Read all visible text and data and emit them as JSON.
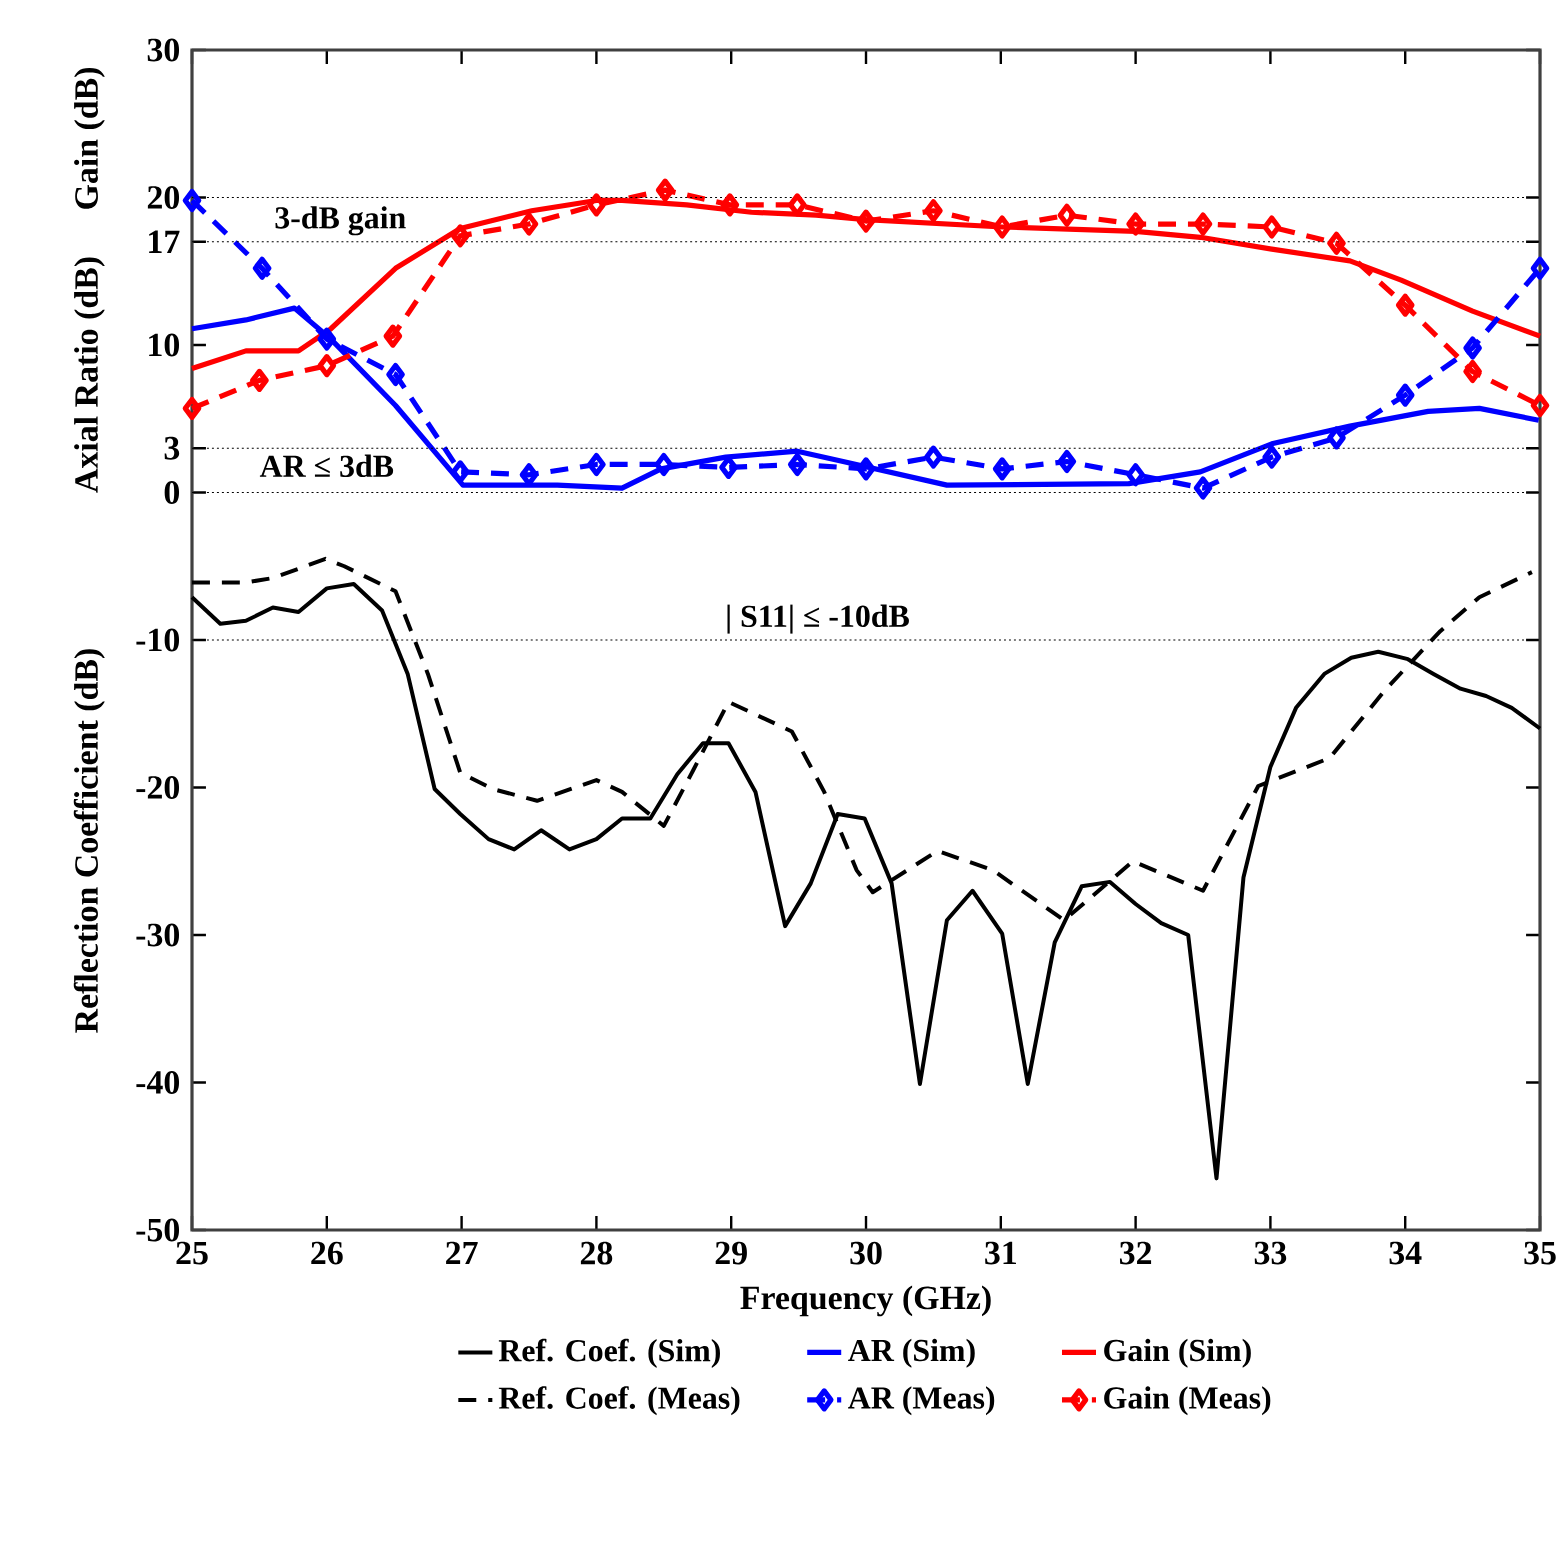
{
  "chart_data": {
    "type": "line",
    "xlabel": "Frequency (GHz)",
    "ylabel": "Reflection Coefficient (dB)",
    "xlim": [
      25,
      35
    ],
    "xticks": [
      25,
      26,
      27,
      28,
      29,
      30,
      31,
      32,
      33,
      34,
      35
    ],
    "ylim": [
      -50,
      30
    ],
    "yticks": [
      -50,
      -40,
      -30,
      -20,
      -10,
      0,
      3,
      10,
      17,
      20,
      30
    ],
    "grid": false,
    "legend": "bottom",
    "series": [
      {
        "name": "Ref. Coef. (Sim)",
        "color": "#000000",
        "line_style": "solid",
        "x": [
          25,
          25.21,
          25.4,
          25.6,
          25.79,
          26,
          26.2,
          26.41,
          26.6,
          26.8,
          26.99,
          27.2,
          27.39,
          27.59,
          27.8,
          28,
          28.19,
          28.4,
          28.6,
          28.79,
          28.98,
          29.18,
          29.4,
          29.59,
          29.79,
          29.99,
          30.19,
          30.4,
          30.6,
          30.79,
          31.01,
          31.2,
          31.4,
          31.6,
          31.81,
          32.0,
          32.19,
          32.39,
          32.6,
          32.8,
          33.0,
          33.19,
          33.4,
          33.6,
          33.8,
          34.02,
          34.21,
          34.41,
          34.6,
          34.79,
          35
        ],
        "values": [
          -7.1,
          -8.9,
          -8.7,
          -7.8,
          -8.1,
          -6.5,
          -6.2,
          -8.0,
          -12.3,
          -20.1,
          -21.8,
          -23.5,
          -24.2,
          -22.9,
          -24.2,
          -23.5,
          -22.1,
          -22.1,
          -19.1,
          -17.0,
          -17.0,
          -20.3,
          -29.4,
          -26.5,
          -21.8,
          -22.1,
          -26.5,
          -40.1,
          -29.0,
          -27.0,
          -29.9,
          -40.1,
          -30.5,
          -26.7,
          -26.4,
          -27.9,
          -29.2,
          -30.0,
          -46.5,
          -26.1,
          -18.6,
          -14.6,
          -12.3,
          -11.2,
          -10.8,
          -11.3,
          -12.3,
          -13.3,
          -13.8,
          -14.6,
          -16.0
        ]
      },
      {
        "name": "AR (Sim)",
        "color": "#0000ff",
        "line_style": "solid",
        "x": [
          25,
          25.4,
          25.76,
          26.03,
          26.51,
          27.01,
          27.71,
          28.19,
          28.48,
          28.96,
          29.49,
          29.83,
          30.6,
          31.95,
          32.48,
          33.01,
          33.59,
          34.17,
          34.55,
          34.99
        ],
        "values": [
          11.1,
          11.7,
          12.5,
          10.4,
          5.9,
          0.5,
          0.5,
          0.3,
          1.6,
          2.4,
          2.8,
          2.1,
          0.5,
          0.6,
          1.4,
          3.3,
          4.5,
          5.5,
          5.7,
          4.9
        ]
      },
      {
        "name": "Gain (Sim)",
        "color": "#ff0000",
        "line_style": "solid",
        "x": [
          25,
          25.4,
          25.79,
          26.03,
          26.51,
          26.99,
          27.52,
          28,
          28.19,
          28.67,
          29.15,
          29.63,
          30,
          31.01,
          32,
          32.48,
          33.01,
          33.59,
          33.97,
          34.5,
          35
        ],
        "values": [
          8.4,
          9.6,
          9.6,
          11.1,
          15.2,
          17.9,
          19.1,
          19.8,
          19.8,
          19.5,
          19.0,
          18.8,
          18.5,
          18.0,
          17.7,
          17.3,
          16.5,
          15.7,
          14.4,
          12.3,
          10.6
        ]
      },
      {
        "name": "Ref. Coef. (Meas)",
        "color": "#000000",
        "line_style": "dashed",
        "x": [
          25,
          25.4,
          25.6,
          25.99,
          26.13,
          26.51,
          26.75,
          26.99,
          27.23,
          27.56,
          28,
          28.19,
          28.5,
          28.72,
          28.98,
          29.45,
          29.69,
          29.93,
          30.05,
          30.53,
          30.94,
          31.47,
          31.98,
          32.5,
          32.91,
          33.44,
          33.85,
          34.26,
          34.55,
          34.94
        ],
        "values": [
          -6.1,
          -6.1,
          -5.8,
          -4.5,
          -5.0,
          -6.7,
          -12.3,
          -19.0,
          -20.1,
          -20.9,
          -19.5,
          -20.3,
          -22.6,
          -18.8,
          -14.2,
          -16.2,
          -20.3,
          -25.6,
          -27.1,
          -24.3,
          -25.6,
          -29.0,
          -25.0,
          -27.0,
          -19.9,
          -18.0,
          -13.4,
          -9.4,
          -7.1,
          -5.4
        ]
      },
      {
        "name": "AR (Meas)",
        "color": "#0000ff",
        "line_style": "dashed",
        "marker": "diamond",
        "x": [
          25,
          25.52,
          26,
          26.51,
          26.99,
          27.5,
          28,
          28.5,
          28.98,
          29.49,
          30,
          30.5,
          31.01,
          31.49,
          32,
          32.5,
          33.01,
          33.49,
          34,
          34.5,
          35
        ],
        "values": [
          19.8,
          15.2,
          10.4,
          8.0,
          1.4,
          1.2,
          1.9,
          1.9,
          1.7,
          1.9,
          1.6,
          2.4,
          1.6,
          2.1,
          1.2,
          0.3,
          2.4,
          3.7,
          6.6,
          9.8,
          15.2
        ]
      },
      {
        "name": "Gain (Meas)",
        "color": "#ff0000",
        "line_style": "dashed",
        "marker": "diamond",
        "x": [
          25,
          25.5,
          26,
          26.49,
          26.99,
          27.5,
          28,
          28.51,
          28.99,
          29.49,
          30,
          30.5,
          31.01,
          31.49,
          32,
          32.5,
          33.01,
          33.49,
          34,
          34.5,
          35
        ],
        "values": [
          5.7,
          7.6,
          8.6,
          10.6,
          17.4,
          18.2,
          19.5,
          20.5,
          19.5,
          19.5,
          18.4,
          19.1,
          18.0,
          18.8,
          18.2,
          18.2,
          18.0,
          16.9,
          12.7,
          8.2,
          5.9
        ]
      }
    ],
    "ref_lines": [
      {
        "axis": "y",
        "value": 20,
        "color": "#000000",
        "line_style": "dotted"
      },
      {
        "axis": "y",
        "value": 17,
        "color": "#000000",
        "line_style": "dotted"
      },
      {
        "axis": "y",
        "value": 3,
        "color": "#000000",
        "line_style": "dotted"
      },
      {
        "axis": "y",
        "value": 0,
        "color": "#000000",
        "line_style": "dotted"
      },
      {
        "axis": "y",
        "value": -10,
        "color": "#000000",
        "line_style": "dotted"
      }
    ],
    "annotations": [
      "Gain (dB)",
      "Axial Ratio (dB)",
      {
        "text": "3-dB  gain",
        "x": 26.1,
        "y": 17
      },
      {
        "text": "AR ≤ 3dB",
        "x": 26.0,
        "y": 3
      },
      {
        "text": "| S11|  ≤ -10dB",
        "x": 29.64,
        "y": -10
      }
    ]
  }
}
